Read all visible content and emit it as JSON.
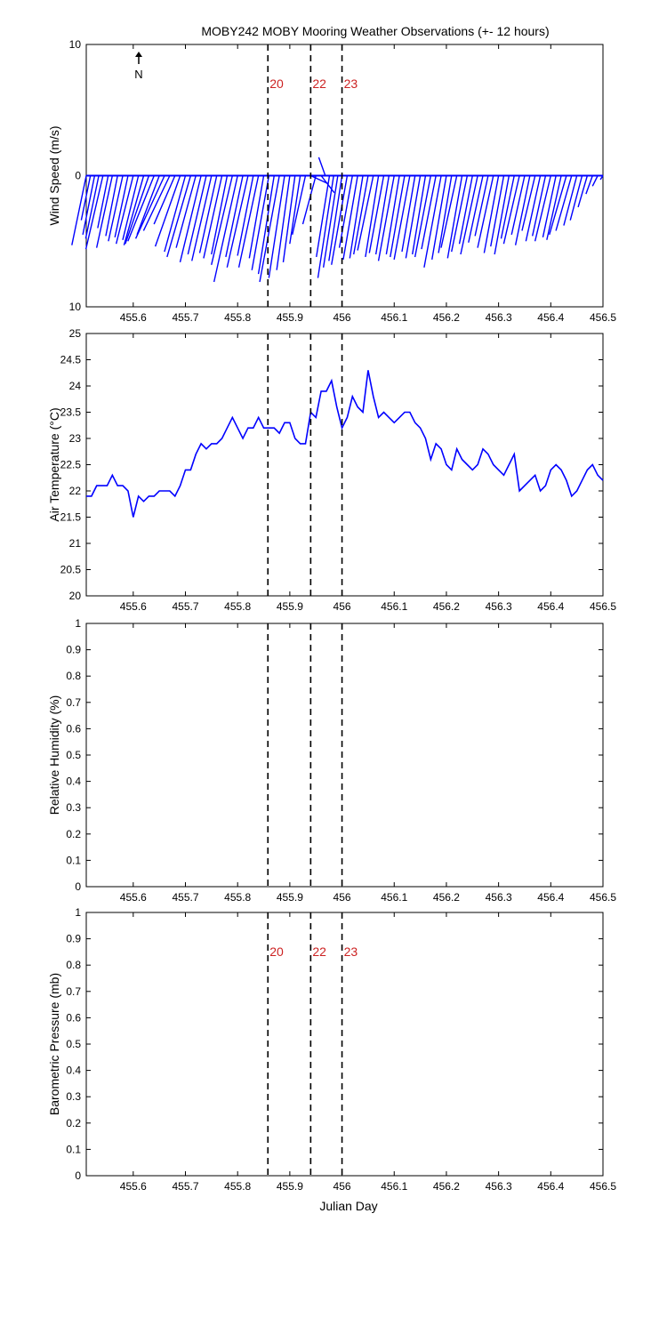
{
  "figure": {
    "title": "MOBY242 MOBY Mooring Weather Observations (+- 12 hours)",
    "xlabel": "Julian Day",
    "north_label": "N",
    "north_icon": "north-arrow-icon"
  },
  "colors": {
    "line": "#0000ff",
    "marker_line": "#000000",
    "marker_label": "#cc2222",
    "axis": "#000000"
  },
  "chart_data": [
    {
      "type": "line",
      "subtype": "wind-vectors",
      "title": "MOBY242 MOBY Mooring Weather Observations (+- 12 hours)",
      "xlabel": "",
      "ylabel": "Wind Speed (m/s)",
      "xlim": [
        455.51,
        456.5
      ],
      "ylim": [
        -10,
        10
      ],
      "yticks": [
        10,
        0,
        10
      ],
      "xticks": [
        "455.6",
        "455.7",
        "455.8",
        "455.9",
        "456",
        "456.1",
        "456.2",
        "456.3",
        "456.4",
        "456.5"
      ],
      "markers": [
        {
          "x": 455.858,
          "label": "20"
        },
        {
          "x": 455.94,
          "label": "22"
        },
        {
          "x": 456.0,
          "label": "23"
        }
      ],
      "vectors": [
        [
          455.51,
          -1.1,
          -5.3
        ],
        [
          455.518,
          -0.7,
          -3.4
        ],
        [
          455.526,
          -0.9,
          -4.5
        ],
        [
          455.534,
          -1.0,
          -4.8
        ],
        [
          455.542,
          -1.3,
          -5.6
        ],
        [
          455.552,
          -0.8,
          -4.0
        ],
        [
          455.56,
          -1.2,
          -5.5
        ],
        [
          455.57,
          -0.9,
          -4.6
        ],
        [
          455.58,
          -1.1,
          -5.0
        ],
        [
          455.59,
          -1.0,
          -4.7
        ],
        [
          455.6,
          -1.3,
          -5.2
        ],
        [
          455.61,
          -1.2,
          -4.9
        ],
        [
          455.62,
          -1.5,
          -5.3
        ],
        [
          455.63,
          -1.8,
          -5.2
        ],
        [
          455.64,
          -2.0,
          -5.0
        ],
        [
          455.65,
          -1.7,
          -4.5
        ],
        [
          455.66,
          -2.2,
          -4.8
        ],
        [
          455.67,
          -2.0,
          -4.2
        ],
        [
          455.68,
          -1.6,
          -3.7
        ],
        [
          455.69,
          -1.9,
          -5.4
        ],
        [
          455.7,
          -1.6,
          -5.8
        ],
        [
          455.71,
          -1.8,
          -6.2
        ],
        [
          455.72,
          -1.5,
          -5.5
        ],
        [
          455.73,
          -1.6,
          -6.6
        ],
        [
          455.74,
          -1.4,
          -6.0
        ],
        [
          455.75,
          -1.5,
          -6.5
        ],
        [
          455.76,
          -1.3,
          -5.9
        ],
        [
          455.77,
          -1.4,
          -6.3
        ],
        [
          455.78,
          -1.2,
          -6.0
        ],
        [
          455.79,
          -1.6,
          -6.8
        ],
        [
          455.8,
          -1.8,
          -8.1
        ],
        [
          455.81,
          -1.3,
          -6.2
        ],
        [
          455.82,
          -1.6,
          -7.0
        ],
        [
          455.83,
          -1.2,
          -6.1
        ],
        [
          455.84,
          -1.5,
          -7.0
        ],
        [
          455.85,
          -1.1,
          -6.3
        ],
        [
          455.86,
          -1.3,
          -7.2
        ],
        [
          455.87,
          -1.2,
          -7.5
        ],
        [
          455.88,
          -1.5,
          -8.1
        ],
        [
          455.89,
          -1.2,
          -7.8
        ],
        [
          455.9,
          -1.0,
          -7.2
        ],
        [
          455.91,
          -0.9,
          -6.6
        ],
        [
          455.92,
          -0.8,
          -5.2
        ],
        [
          455.93,
          -1.0,
          -4.5
        ],
        [
          455.94,
          1.3,
          -0.6
        ],
        [
          455.95,
          -1.0,
          -3.7
        ],
        [
          455.96,
          1.0,
          -1.3
        ],
        [
          455.968,
          -0.5,
          1.4
        ],
        [
          455.976,
          -1.0,
          -6.2
        ],
        [
          455.984,
          -1.2,
          -7.8
        ],
        [
          455.992,
          -1.1,
          -7.0
        ],
        [
          456.0,
          -1.0,
          -6.5
        ],
        [
          456.01,
          -1.2,
          -6.8
        ],
        [
          456.02,
          -1.0,
          -5.5
        ],
        [
          456.03,
          -1.1,
          -6.4
        ],
        [
          456.04,
          -1.0,
          -6.3
        ],
        [
          456.05,
          -1.1,
          -6.0
        ],
        [
          456.06,
          -1.2,
          -5.7
        ],
        [
          456.07,
          -1.0,
          -6.2
        ],
        [
          456.08,
          -1.1,
          -5.9
        ],
        [
          456.09,
          -1.0,
          -6.0
        ],
        [
          456.1,
          -1.2,
          -6.5
        ],
        [
          456.11,
          -1.0,
          -6.0
        ],
        [
          456.12,
          -1.1,
          -6.2
        ],
        [
          456.13,
          -1.2,
          -6.4
        ],
        [
          456.14,
          -1.0,
          -5.8
        ],
        [
          456.15,
          -1.1,
          -6.3
        ],
        [
          456.16,
          -1.0,
          -6.0
        ],
        [
          456.17,
          -1.2,
          -6.2
        ],
        [
          456.18,
          -1.1,
          -5.6
        ],
        [
          456.19,
          -1.3,
          -7.0
        ],
        [
          456.2,
          -1.1,
          -6.4
        ],
        [
          456.21,
          -1.0,
          -5.9
        ],
        [
          456.22,
          -1.2,
          -5.5
        ],
        [
          456.23,
          -1.1,
          -6.3
        ],
        [
          456.24,
          -1.2,
          -5.8
        ],
        [
          456.25,
          -1.0,
          -5.2
        ],
        [
          456.26,
          -1.3,
          -6.0
        ],
        [
          456.27,
          -1.1,
          -5.1
        ],
        [
          456.28,
          -1.0,
          -4.6
        ],
        [
          456.29,
          -1.2,
          -5.5
        ],
        [
          456.3,
          -1.1,
          -5.9
        ],
        [
          456.31,
          -1.0,
          -5.4
        ],
        [
          456.32,
          -1.1,
          -6.0
        ],
        [
          456.33,
          -1.0,
          -4.8
        ],
        [
          456.34,
          -1.2,
          -5.2
        ],
        [
          456.35,
          -1.0,
          -4.5
        ],
        [
          456.36,
          -1.1,
          -5.3
        ],
        [
          456.37,
          -1.0,
          -4.2
        ],
        [
          456.38,
          -1.1,
          -5.0
        ],
        [
          456.39,
          -1.0,
          -4.6
        ],
        [
          456.4,
          -1.2,
          -5.0
        ],
        [
          456.41,
          -1.0,
          -4.7
        ],
        [
          456.42,
          -1.1,
          -4.9
        ],
        [
          456.43,
          -1.3,
          -4.5
        ],
        [
          456.44,
          -1.2,
          -4.2
        ],
        [
          456.45,
          -1.0,
          -3.8
        ],
        [
          456.46,
          -0.9,
          -3.4
        ],
        [
          456.47,
          -0.7,
          -2.4
        ],
        [
          456.48,
          -0.5,
          -1.4
        ],
        [
          456.49,
          -0.4,
          -0.8
        ],
        [
          456.5,
          -0.2,
          -0.3
        ]
      ]
    },
    {
      "type": "line",
      "title": "",
      "xlabel": "",
      "ylabel": "Air Temperature (°C)",
      "xlim": [
        455.51,
        456.5
      ],
      "ylim": [
        20,
        25
      ],
      "yticks": [
        20,
        20.5,
        21,
        21.5,
        22,
        22.5,
        23,
        23.5,
        24,
        24.5,
        25
      ],
      "xticks": [
        "455.6",
        "455.7",
        "455.8",
        "455.9",
        "456",
        "456.1",
        "456.2",
        "456.3",
        "456.4",
        "456.5"
      ],
      "markers": [
        {
          "x": 455.858,
          "label": ""
        },
        {
          "x": 455.94,
          "label": ""
        },
        {
          "x": 456.0,
          "label": ""
        }
      ],
      "series": [
        {
          "x": [
            455.51,
            455.52,
            455.53,
            455.54,
            455.55,
            455.56,
            455.57,
            455.58,
            455.59,
            455.6,
            455.61,
            455.62,
            455.63,
            455.64,
            455.65,
            455.66,
            455.67,
            455.68,
            455.69,
            455.7,
            455.71,
            455.72,
            455.73,
            455.74,
            455.75,
            455.76,
            455.77,
            455.78,
            455.79,
            455.8,
            455.81,
            455.82,
            455.83,
            455.84,
            455.85,
            455.86,
            455.87,
            455.88,
            455.89,
            455.9,
            455.91,
            455.92,
            455.93,
            455.94,
            455.95,
            455.96,
            455.97,
            455.98,
            455.99,
            456.0,
            456.01,
            456.02,
            456.03,
            456.04,
            456.05,
            456.06,
            456.07,
            456.08,
            456.09,
            456.1,
            456.11,
            456.12,
            456.13,
            456.14,
            456.15,
            456.16,
            456.17,
            456.18,
            456.19,
            456.2,
            456.21,
            456.22,
            456.23,
            456.24,
            456.25,
            456.26,
            456.27,
            456.28,
            456.29,
            456.3,
            456.31,
            456.32,
            456.33,
            456.34,
            456.35,
            456.36,
            456.37,
            456.38,
            456.39,
            456.4,
            456.41,
            456.42,
            456.43,
            456.44,
            456.45,
            456.46,
            456.47,
            456.48,
            456.49,
            456.5
          ],
          "y": [
            21.9,
            21.9,
            22.1,
            22.1,
            22.1,
            22.3,
            22.1,
            22.1,
            22.0,
            21.5,
            21.9,
            21.8,
            21.9,
            21.9,
            22.0,
            22.0,
            22.0,
            21.9,
            22.1,
            22.4,
            22.4,
            22.7,
            22.9,
            22.8,
            22.9,
            22.9,
            23.0,
            23.2,
            23.4,
            23.2,
            23.0,
            23.2,
            23.2,
            23.4,
            23.2,
            23.2,
            23.2,
            23.1,
            23.3,
            23.3,
            23.0,
            22.9,
            22.9,
            23.5,
            23.4,
            23.9,
            23.9,
            24.1,
            23.6,
            23.2,
            23.4,
            23.8,
            23.6,
            23.5,
            24.3,
            23.8,
            23.4,
            23.5,
            23.4,
            23.3,
            23.4,
            23.5,
            23.5,
            23.3,
            23.2,
            23.0,
            22.6,
            22.9,
            22.8,
            22.5,
            22.4,
            22.8,
            22.6,
            22.5,
            22.4,
            22.5,
            22.8,
            22.7,
            22.5,
            22.4,
            22.3,
            22.5,
            22.7,
            22.0,
            22.1,
            22.2,
            22.3,
            22.0,
            22.1,
            22.4,
            22.5,
            22.4,
            22.2,
            21.9,
            22.0,
            22.2,
            22.4,
            22.5,
            22.3,
            22.2
          ]
        }
      ]
    },
    {
      "type": "line",
      "title": "",
      "xlabel": "",
      "ylabel": "Relative Humidity (%)",
      "xlim": [
        455.51,
        456.5
      ],
      "ylim": [
        0,
        1
      ],
      "yticks": [
        0,
        0.1,
        0.2,
        0.3,
        0.4,
        0.5,
        0.6,
        0.7,
        0.8,
        0.9,
        1
      ],
      "xticks": [
        "455.6",
        "455.7",
        "455.8",
        "455.9",
        "456",
        "456.1",
        "456.2",
        "456.3",
        "456.4",
        "456.5"
      ],
      "markers": [
        {
          "x": 455.858,
          "label": ""
        },
        {
          "x": 455.94,
          "label": ""
        },
        {
          "x": 456.0,
          "label": ""
        }
      ],
      "series": []
    },
    {
      "type": "line",
      "title": "",
      "xlabel": "Julian Day",
      "ylabel": "Barometric Pressure (mb)",
      "xlim": [
        455.51,
        456.5
      ],
      "ylim": [
        0,
        1
      ],
      "yticks": [
        0,
        0.1,
        0.2,
        0.3,
        0.4,
        0.5,
        0.6,
        0.7,
        0.8,
        0.9,
        1
      ],
      "xticks": [
        "455.6",
        "455.7",
        "455.8",
        "455.9",
        "456",
        "456.1",
        "456.2",
        "456.3",
        "456.4",
        "456.5"
      ],
      "markers": [
        {
          "x": 455.858,
          "label": "20"
        },
        {
          "x": 455.94,
          "label": "22"
        },
        {
          "x": 456.0,
          "label": "23"
        }
      ],
      "series": []
    }
  ]
}
